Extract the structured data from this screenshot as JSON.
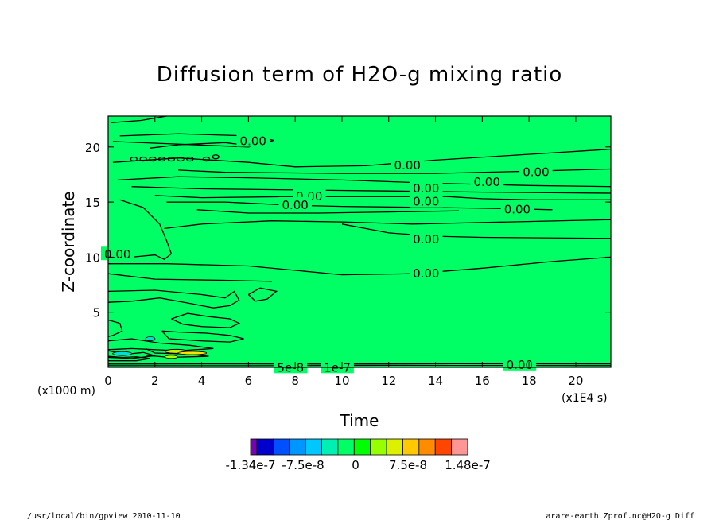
{
  "chart_data": {
    "type": "heatmap",
    "title": "Diffusion term of H2O-g mixing ratio",
    "xlabel": "Time",
    "ylabel": "Z-coordinate",
    "x_unit": "(x1E4 s)",
    "y_unit": "(x1000 m)",
    "xlim": [
      0,
      21.5
    ],
    "ylim": [
      0,
      22.8
    ],
    "x_ticks": [
      0,
      2,
      4,
      6,
      8,
      10,
      12,
      14,
      16,
      18,
      20
    ],
    "y_ticks": [
      5,
      10,
      15,
      20
    ],
    "contour_labels": [
      {
        "text": "0.00",
        "x": 6.2,
        "z": 20.6
      },
      {
        "text": "0.00",
        "x": 12.8,
        "z": 18.4
      },
      {
        "text": "0.00",
        "x": 18.3,
        "z": 17.8
      },
      {
        "text": "0.00",
        "x": 16.2,
        "z": 16.9
      },
      {
        "text": "0.00",
        "x": 13.6,
        "z": 16.3
      },
      {
        "text": "0.00",
        "x": 8.6,
        "z": 15.6
      },
      {
        "text": "0.00",
        "x": 13.6,
        "z": 15.1
      },
      {
        "text": "0.00",
        "x": 8.0,
        "z": 14.8
      },
      {
        "text": "0.00",
        "x": 17.5,
        "z": 14.4
      },
      {
        "text": "0.00",
        "x": 13.6,
        "z": 11.7
      },
      {
        "text": "0.00",
        "x": 0.4,
        "z": 10.3
      },
      {
        "text": "0.00",
        "x": 13.6,
        "z": 8.6
      },
      {
        "text": "0.00",
        "x": 17.6,
        "z": 0.3
      },
      {
        "text": "5e-8",
        "x": 7.8,
        "z": 0.05
      },
      {
        "text": "1e-7",
        "x": 9.8,
        "z": 0.05
      }
    ],
    "colorbar": {
      "colors": [
        "#7a00b8",
        "#0000cc",
        "#0050ff",
        "#0096ff",
        "#00c8ff",
        "#00f0b4",
        "#00ff64",
        "#00ff00",
        "#96ff00",
        "#dcf000",
        "#ffc800",
        "#ff8c00",
        "#ff4600",
        "#ff9696"
      ],
      "labels": [
        "-1.34e-7",
        "-7.5e-8",
        "0",
        "7.5e-8",
        "1.48e-7"
      ]
    }
  },
  "footer": {
    "left": "/usr/local/bin/gpview  2010-11-10",
    "right": "arare-earth_Zprof.nc@H2O-g_Diff"
  }
}
